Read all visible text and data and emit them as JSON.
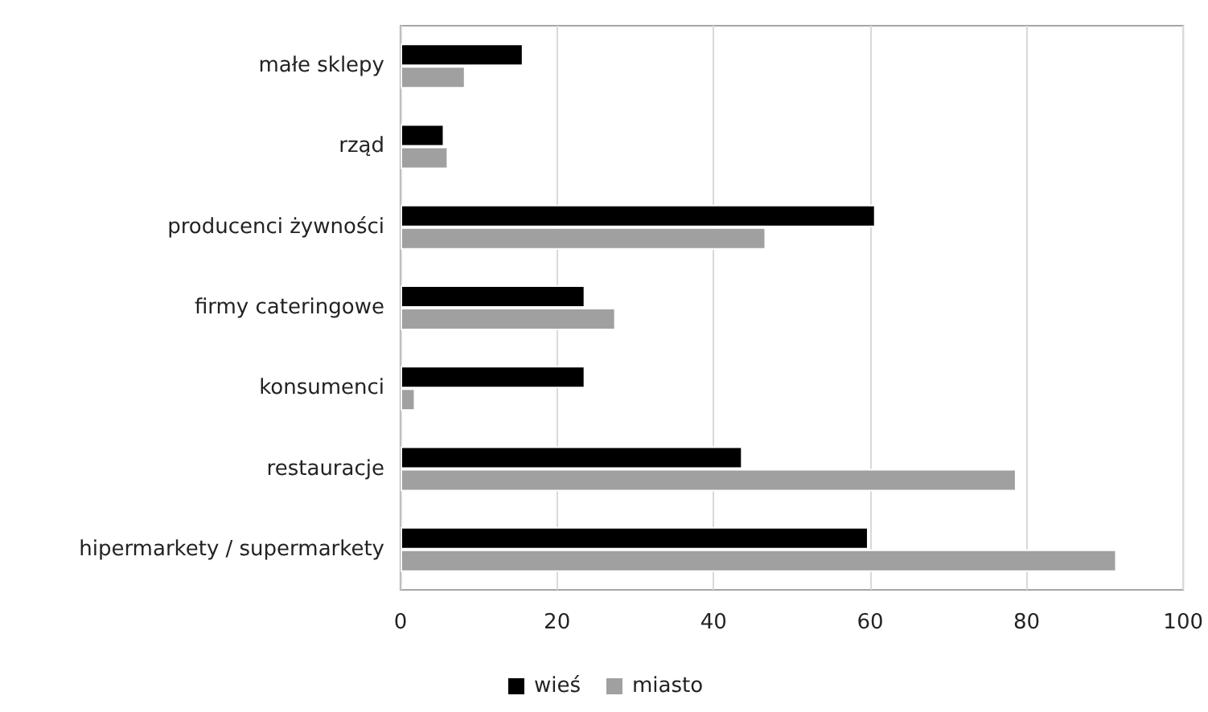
{
  "chart_data": {
    "type": "bar",
    "orientation": "horizontal",
    "categories": [
      "małe sklepy",
      "rząd",
      "producenci żywności",
      "firmy cateringowe",
      "konsumenci",
      "restauracje",
      "hipermarkety / supermarkety"
    ],
    "series": [
      {
        "name": "wieś",
        "color": "#000000",
        "values": [
          15.7,
          5.6,
          60.7,
          23.6,
          23.6,
          43.7,
          59.8
        ]
      },
      {
        "name": "miasto",
        "color": "#a0a0a0",
        "values": [
          8.3,
          6.1,
          46.7,
          27.5,
          1.9,
          78.7,
          91.5
        ]
      }
    ],
    "xlim": [
      0,
      100
    ],
    "xticks": [
      0,
      20,
      40,
      60,
      80,
      100
    ],
    "grid": "x",
    "legend": "bottom"
  }
}
